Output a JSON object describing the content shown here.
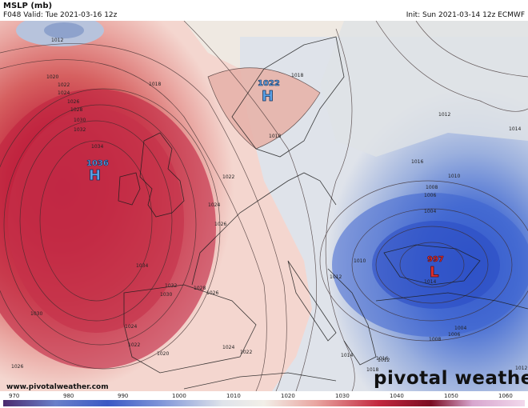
{
  "header": {
    "title": "MSLP (mb)",
    "valid": "F048 Valid: Tue 2021-03-16 12z",
    "init": "Init: Sun 2021-03-14 12z ECMWF"
  },
  "footer": {
    "url": "www.pivotalweather.com",
    "brand": "pivotal weather"
  },
  "colorbar": {
    "ticks": [
      "970",
      "980",
      "990",
      "1000",
      "1010",
      "1020",
      "1030",
      "1040",
      "1050",
      "1060"
    ],
    "low_color": "#1f3fb5",
    "mid_color": "#f2efe8",
    "high_color": "#b01030"
  },
  "pressure_centers": [
    {
      "type": "H",
      "value": "1036",
      "color": "#5aa0e6"
    },
    {
      "type": "H",
      "value": "1022",
      "color": "#5aa0e6"
    },
    {
      "type": "L",
      "value": "997",
      "color": "#e23030"
    }
  ],
  "isobar_labels": [
    "1012",
    "1020",
    "1022",
    "1024",
    "1026",
    "1028",
    "1030",
    "1032",
    "1034",
    "1018",
    "1018",
    "1022",
    "1024",
    "1026",
    "1034",
    "1030",
    "1032",
    "1030",
    "1028",
    "1026",
    "1024",
    "1022",
    "1020",
    "1026",
    "1024",
    "1022",
    "1018",
    "1018",
    "1016",
    "1014",
    "1012",
    "1010",
    "1012",
    "1014",
    "1016",
    "1010",
    "1008",
    "1006",
    "1004",
    "1004",
    "1006",
    "1008",
    "1012",
    "1012",
    "1014"
  ]
}
